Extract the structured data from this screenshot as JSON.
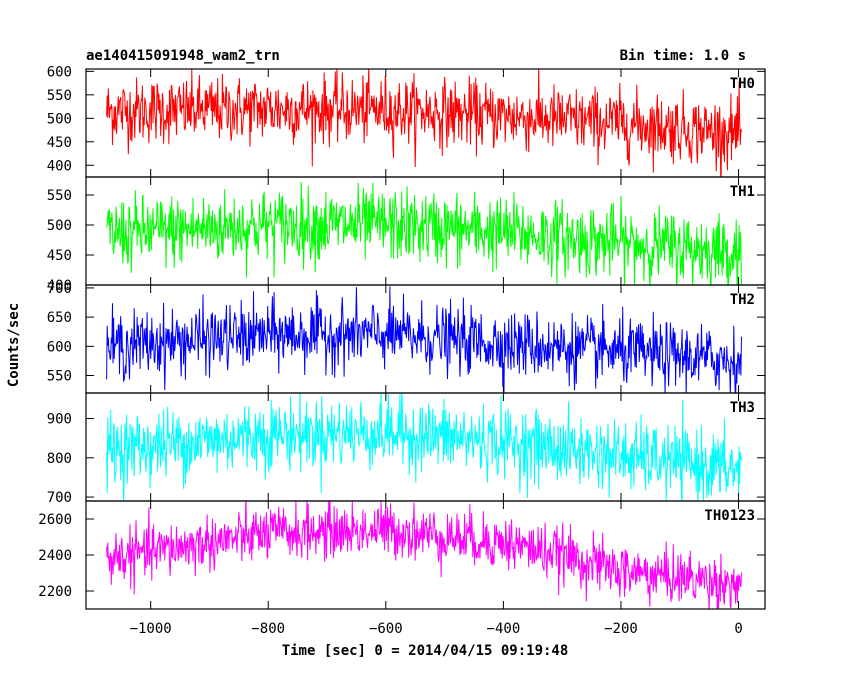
{
  "header": {
    "title": "ae140415091948_wam2_trn",
    "bin_time": "Bin time: 1.0 s"
  },
  "chart_data": {
    "type": "line",
    "title": "ae140415091948_wam2_trn",
    "xlabel": "Time [sec] 0 = 2014/04/15 09:19:48",
    "ylabel": "Counts/sec",
    "xlim": [
      -1110,
      45
    ],
    "x_ticks": [
      -1000,
      -800,
      -600,
      -400,
      -200,
      0
    ],
    "x_tick_labels": [
      "−1000",
      "−800",
      "−600",
      "−400",
      "−200",
      "0"
    ],
    "panels": [
      {
        "name": "TH0",
        "color": "#ff0000",
        "ylim": [
          375,
          605
        ],
        "y_ticks": [
          400,
          450,
          500,
          550,
          600
        ],
        "x_range": [
          -1075,
          5
        ],
        "trend": [
          [
            -1075,
            515
          ],
          [
            -800,
            520
          ],
          [
            -600,
            518
          ],
          [
            -400,
            505
          ],
          [
            -200,
            490
          ],
          [
            0,
            468
          ]
        ],
        "noise_sd": 35
      },
      {
        "name": "TH1",
        "color": "#00ff00",
        "ylim": [
          400,
          580
        ],
        "y_ticks": [
          400,
          450,
          500,
          550
        ],
        "x_range": [
          -1075,
          5
        ],
        "trend": [
          [
            -1075,
            485
          ],
          [
            -800,
            500
          ],
          [
            -600,
            500
          ],
          [
            -400,
            488
          ],
          [
            -200,
            470
          ],
          [
            0,
            455
          ]
        ],
        "noise_sd": 30
      },
      {
        "name": "TH2",
        "color": "#0000ff",
        "ylim": [
          520,
          705
        ],
        "y_ticks": [
          550,
          600,
          650,
          700
        ],
        "x_range": [
          -1075,
          5
        ],
        "trend": [
          [
            -1075,
            600
          ],
          [
            -800,
            620
          ],
          [
            -600,
            620
          ],
          [
            -400,
            605
          ],
          [
            -200,
            590
          ],
          [
            0,
            575
          ]
        ],
        "noise_sd": 28
      },
      {
        "name": "TH3",
        "color": "#00ffff",
        "ylim": [
          690,
          965
        ],
        "y_ticks": [
          700,
          800,
          900
        ],
        "x_range": [
          -1075,
          5
        ],
        "trend": [
          [
            -1075,
            820
          ],
          [
            -800,
            860
          ],
          [
            -600,
            865
          ],
          [
            -400,
            840
          ],
          [
            -200,
            805
          ],
          [
            0,
            770
          ]
        ],
        "noise_sd": 45
      },
      {
        "name": "TH0123",
        "color": "#ff00ff",
        "ylim": [
          2100,
          2700
        ],
        "y_ticks": [
          2200,
          2400,
          2600
        ],
        "x_range": [
          -1075,
          5
        ],
        "trend": [
          [
            -1075,
            2380
          ],
          [
            -800,
            2520
          ],
          [
            -600,
            2540
          ],
          [
            -400,
            2470
          ],
          [
            -300,
            2400
          ],
          [
            -200,
            2310
          ],
          [
            0,
            2240
          ]
        ],
        "noise_sd": 75
      }
    ],
    "grid": false,
    "legend": "none"
  }
}
